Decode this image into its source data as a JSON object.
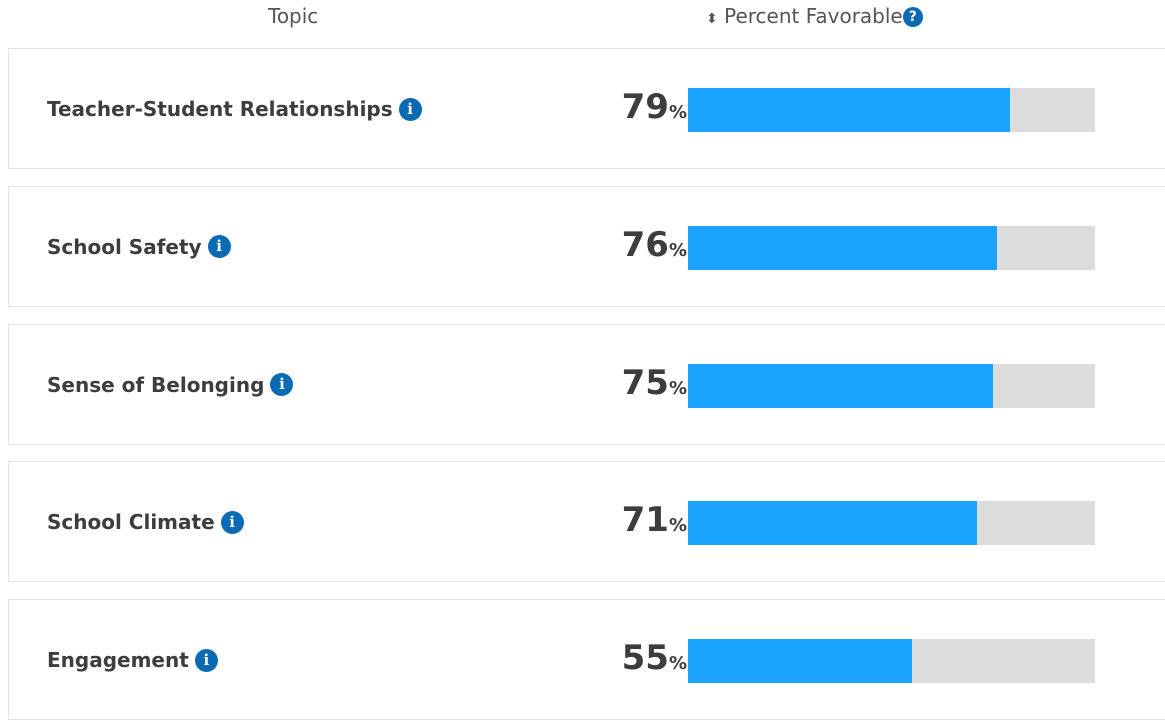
{
  "header": {
    "topic": "Topic",
    "metric": "Percent Favorable"
  },
  "scale": [
    0,
    100
  ],
  "rows": [
    {
      "topic": "Teacher-Student Relationships",
      "value": 79,
      "unit": "%"
    },
    {
      "topic": "School Safety",
      "value": 76,
      "unit": "%"
    },
    {
      "topic": "Sense of Belonging",
      "value": 75,
      "unit": "%"
    },
    {
      "topic": "School Climate",
      "value": 71,
      "unit": "%"
    },
    {
      "topic": "Engagement",
      "value": 55,
      "unit": "%"
    }
  ]
}
